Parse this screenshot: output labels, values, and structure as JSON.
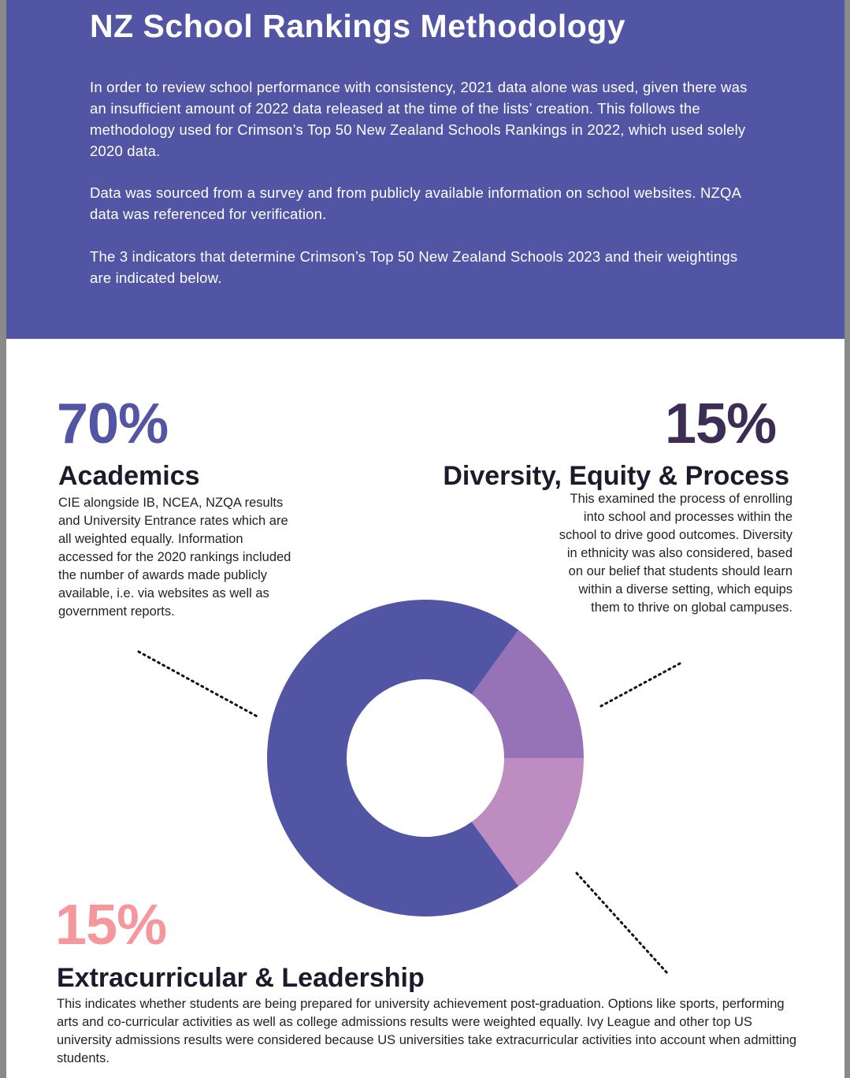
{
  "header": {
    "title": "NZ School Rankings Methodology",
    "paragraphs": [
      "In order to review school performance with consistency, 2021 data alone was used, given there was an insufficient amount of 2022 data released at the time of the lists’ creation. This follows the methodology used for Crimson’s Top 50 New Zealand Schools Rankings in 2022, which used solely 2020 data.",
      "Data was sourced from a survey and from publicly available information on school websites. NZQA data was referenced for verification.",
      "The 3 indicators that determine Crimson’s Top 50 New Zealand Schools 2023 and their weightings are indicated below."
    ]
  },
  "indicators": {
    "academics": {
      "percent": "70%",
      "title": "Academics",
      "description": "CIE alongside IB, NCEA, NZQA results and University Entrance rates which are all weighted equally. Information accessed for the 2020 rankings included the number of awards made publicly available, i.e. via websites as well as government reports."
    },
    "diversity": {
      "percent": "15%",
      "title": "Diversity, Equity & Process",
      "description": "This examined the process of enrolling into school and processes within the school to drive good outcomes. Diversity in ethnicity was also considered, based on our belief that students should learn within a diverse setting, which equips them to thrive on global campuses."
    },
    "extracurricular": {
      "percent": "15%",
      "title": "Extracurricular & Leadership",
      "description": "This indicates whether students are being prepared for university achievement post-graduation. Options like sports, performing arts and co-curricular activities as well as college admissions results were weighted equally. Ivy League and other top US university admissions results were considered because US universities take extracurricular activities into account when admitting students."
    }
  },
  "colors": {
    "header_bg": "#5155a3",
    "academics": "#5155a3",
    "diversity_percent": "#3d2d55",
    "diversity_slice": "#9673b6",
    "extracurricular_percent": "#f5979c",
    "extracurricular_slice": "#bd8cc0"
  },
  "chart_data": {
    "type": "pie",
    "variant": "donut",
    "slices": [
      {
        "value": 70,
        "color": "#5155a3"
      },
      {
        "value": 15,
        "color": "#9673b6"
      },
      {
        "value": 15,
        "color": "#bd8cc0"
      }
    ]
  }
}
